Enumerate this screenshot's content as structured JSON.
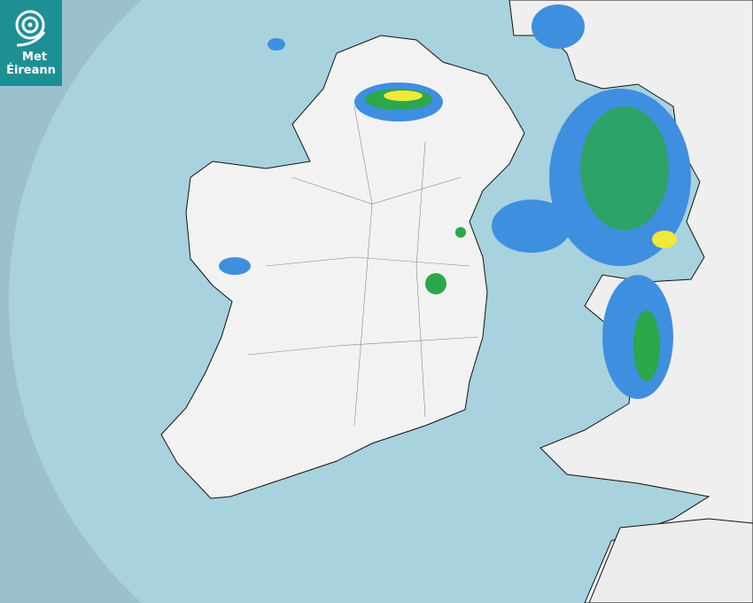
{
  "logo": {
    "line1": "Met",
    "line2": "Éireann",
    "icon": "swirl-logo-icon"
  },
  "colors": {
    "sea_outside_coverage": "#9cc1cc",
    "sea_radar_coverage": "#a8d2dd",
    "land": "#f1f1f1",
    "rain_light": "#3f8fe0",
    "rain_moderate": "#2aa84a",
    "rain_heavy": "#f0e83a",
    "logo_bg": "#1f8f96"
  }
}
